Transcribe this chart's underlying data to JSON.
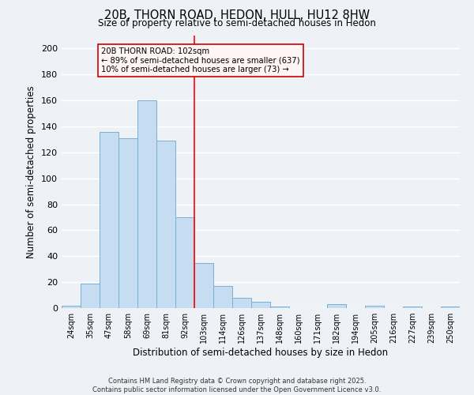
{
  "title": "20B, THORN ROAD, HEDON, HULL, HU12 8HW",
  "subtitle": "Size of property relative to semi-detached houses in Hedon",
  "xlabel": "Distribution of semi-detached houses by size in Hedon",
  "ylabel": "Number of semi-detached properties",
  "bin_labels": [
    "24sqm",
    "35sqm",
    "47sqm",
    "58sqm",
    "69sqm",
    "81sqm",
    "92sqm",
    "103sqm",
    "114sqm",
    "126sqm",
    "137sqm",
    "148sqm",
    "160sqm",
    "171sqm",
    "182sqm",
    "194sqm",
    "205sqm",
    "216sqm",
    "227sqm",
    "239sqm",
    "250sqm"
  ],
  "bar_values": [
    2,
    19,
    136,
    131,
    160,
    129,
    70,
    35,
    17,
    8,
    5,
    1,
    0,
    0,
    3,
    0,
    2,
    0,
    1,
    0,
    1
  ],
  "bar_color": "#c6dcf0",
  "bar_edge_color": "#7ab0d4",
  "vline_color": "red",
  "vline_index": 6.5,
  "annotation_title": "20B THORN ROAD: 102sqm",
  "annotation_line1": "← 89% of semi-detached houses are smaller (637)",
  "annotation_line2": "10% of semi-detached houses are larger (73) →",
  "annotation_box_color": "#fff5f5",
  "annotation_box_edge": "#cc0000",
  "ylim": [
    0,
    210
  ],
  "yticks": [
    0,
    20,
    40,
    60,
    80,
    100,
    120,
    140,
    160,
    180,
    200
  ],
  "background_color": "#eef2f7",
  "grid_color": "#ffffff",
  "footer_line1": "Contains HM Land Registry data © Crown copyright and database right 2025.",
  "footer_line2": "Contains public sector information licensed under the Open Government Licence v3.0."
}
